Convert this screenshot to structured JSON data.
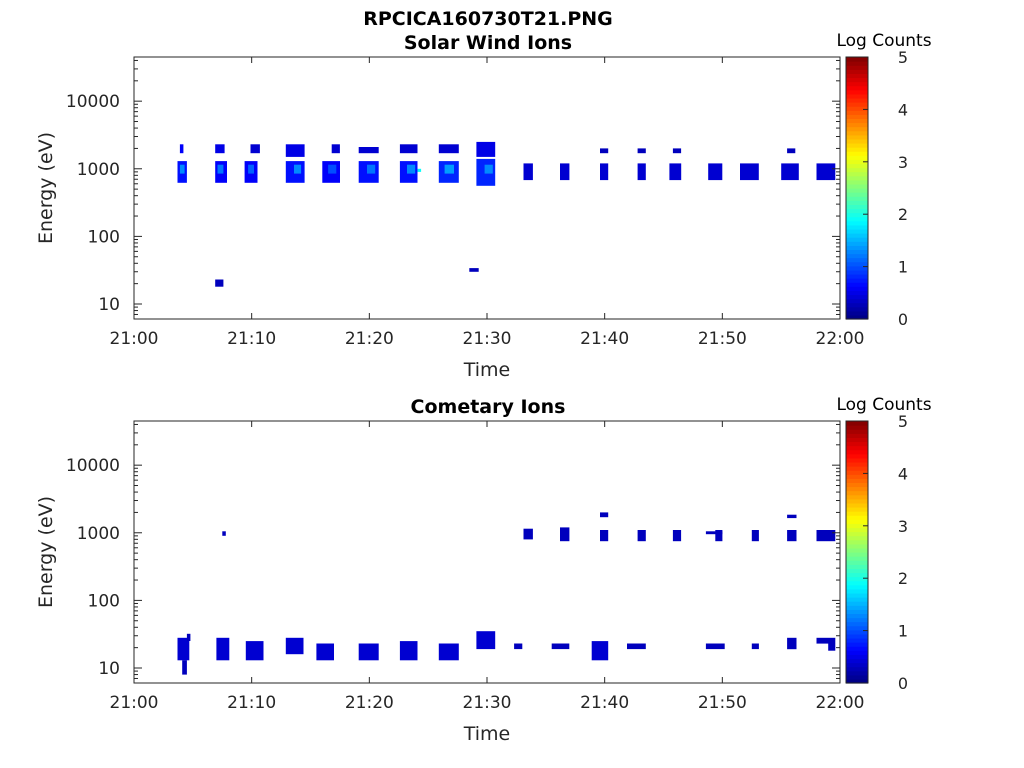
{
  "figure_title": "RPCICA160730T21.PNG",
  "colorbar": {
    "title": "Log Counts",
    "ticks": [
      "0",
      "1",
      "2",
      "3",
      "4",
      "5"
    ],
    "range": [
      0,
      5
    ],
    "colormap": "jet"
  },
  "chart_data": [
    {
      "type": "heatmap",
      "title": "Solar Wind Ions",
      "xlabel": "Time",
      "ylabel": "Energy (eV)",
      "x_ticks": [
        "21:00",
        "21:10",
        "21:20",
        "21:30",
        "21:40",
        "21:50",
        "22:00"
      ],
      "xlim_minutes": [
        0,
        60
      ],
      "y_scale": "log",
      "y_ticks": [
        "10",
        "100",
        "1000",
        "10000"
      ],
      "y_tick_values": [
        10,
        100,
        1000,
        10000
      ],
      "ylim": [
        6,
        45000
      ],
      "cells": [
        [
          3.7,
          4.5,
          620,
          1300,
          0.7
        ],
        [
          3.9,
          4.3,
          850,
          1150,
          1.3
        ],
        [
          3.9,
          4.2,
          1700,
          2300,
          0.6
        ],
        [
          6.9,
          7.9,
          620,
          1300,
          0.6
        ],
        [
          7.1,
          7.6,
          850,
          1150,
          1.2
        ],
        [
          6.9,
          7.7,
          1700,
          2300,
          0.5
        ],
        [
          6.9,
          7.6,
          18,
          23,
          0.3
        ],
        [
          9.4,
          10.5,
          620,
          1300,
          0.6
        ],
        [
          9.7,
          10.2,
          850,
          1150,
          1.1
        ],
        [
          9.9,
          10.7,
          1700,
          2300,
          0.4
        ],
        [
          12.9,
          14.5,
          620,
          1300,
          0.7
        ],
        [
          13.6,
          14.2,
          850,
          1150,
          1.3
        ],
        [
          12.9,
          14.5,
          1500,
          2300,
          0.5
        ],
        [
          16.0,
          17.5,
          620,
          1300,
          0.6
        ],
        [
          16.5,
          17.2,
          850,
          1150,
          1.0
        ],
        [
          16.8,
          17.5,
          1700,
          2300,
          0.4
        ],
        [
          19.1,
          20.8,
          620,
          1300,
          0.7
        ],
        [
          19.8,
          20.5,
          850,
          1150,
          1.2
        ],
        [
          19.1,
          20.8,
          1700,
          2100,
          0.4
        ],
        [
          22.6,
          24.1,
          620,
          1300,
          0.7
        ],
        [
          23.2,
          23.9,
          850,
          1150,
          1.3
        ],
        [
          24.1,
          24.4,
          900,
          1000,
          1.9
        ],
        [
          22.6,
          24.1,
          1700,
          2300,
          0.4
        ],
        [
          25.9,
          27.6,
          620,
          1300,
          0.8
        ],
        [
          26.4,
          27.2,
          850,
          1150,
          1.4
        ],
        [
          25.9,
          27.6,
          1700,
          2300,
          0.4
        ],
        [
          28.5,
          29.3,
          30,
          34,
          0.3
        ],
        [
          29.1,
          30.7,
          560,
          1400,
          0.8
        ],
        [
          29.8,
          30.5,
          850,
          1150,
          1.3
        ],
        [
          29.1,
          30.7,
          1500,
          2500,
          0.5
        ],
        [
          33.1,
          33.9,
          680,
          1200,
          0.4
        ],
        [
          36.2,
          37.0,
          680,
          1200,
          0.4
        ],
        [
          39.6,
          40.3,
          680,
          1200,
          0.4
        ],
        [
          39.6,
          40.3,
          1700,
          2000,
          0.3
        ],
        [
          42.8,
          43.5,
          680,
          1200,
          0.4
        ],
        [
          42.8,
          43.5,
          1700,
          2000,
          0.3
        ],
        [
          45.5,
          46.5,
          680,
          1200,
          0.4
        ],
        [
          45.8,
          46.5,
          1700,
          2000,
          0.3
        ],
        [
          48.8,
          50.0,
          680,
          1200,
          0.4
        ],
        [
          51.5,
          53.1,
          680,
          1200,
          0.4
        ],
        [
          55.0,
          56.5,
          680,
          1200,
          0.4
        ],
        [
          55.5,
          56.2,
          1700,
          2000,
          0.3
        ],
        [
          58.0,
          59.6,
          680,
          1200,
          0.4
        ]
      ]
    },
    {
      "type": "heatmap",
      "title": "Cometary Ions",
      "xlabel": "Time",
      "ylabel": "Energy (eV)",
      "x_ticks": [
        "21:00",
        "21:10",
        "21:20",
        "21:30",
        "21:40",
        "21:50",
        "22:00"
      ],
      "xlim_minutes": [
        0,
        60
      ],
      "y_scale": "log",
      "y_ticks": [
        "10",
        "100",
        "1000",
        "10000"
      ],
      "y_tick_values": [
        10,
        100,
        1000,
        10000
      ],
      "ylim": [
        6,
        45000
      ],
      "cells": [
        [
          3.7,
          4.7,
          13,
          28,
          0.4
        ],
        [
          4.1,
          4.5,
          8,
          13,
          0.3
        ],
        [
          4.5,
          4.8,
          25,
          32,
          0.3
        ],
        [
          7.0,
          8.1,
          13,
          28,
          0.4
        ],
        [
          7.5,
          7.8,
          900,
          1050,
          0.3
        ],
        [
          9.5,
          11.0,
          13,
          25,
          0.4
        ],
        [
          12.9,
          14.4,
          16,
          28,
          0.4
        ],
        [
          15.5,
          17.0,
          13,
          23,
          0.4
        ],
        [
          19.1,
          20.8,
          13,
          23,
          0.4
        ],
        [
          22.6,
          24.1,
          13,
          25,
          0.4
        ],
        [
          25.9,
          27.6,
          13,
          23,
          0.4
        ],
        [
          29.1,
          30.7,
          19,
          35,
          0.4
        ],
        [
          32.3,
          33.0,
          19,
          23,
          0.3
        ],
        [
          33.1,
          33.9,
          800,
          1150,
          0.3
        ],
        [
          35.5,
          37.0,
          19,
          23,
          0.3
        ],
        [
          36.2,
          37.0,
          750,
          1200,
          0.3
        ],
        [
          38.9,
          40.3,
          13,
          25,
          0.4
        ],
        [
          39.6,
          40.3,
          750,
          1100,
          0.3
        ],
        [
          39.6,
          40.3,
          1700,
          2000,
          0.3
        ],
        [
          41.9,
          43.5,
          19,
          23,
          0.3
        ],
        [
          42.8,
          43.5,
          750,
          1100,
          0.3
        ],
        [
          45.8,
          46.5,
          750,
          1100,
          0.3
        ],
        [
          48.6,
          50.2,
          19,
          23,
          0.3
        ],
        [
          48.6,
          50.0,
          950,
          1050,
          0.3
        ],
        [
          49.4,
          50.0,
          750,
          1100,
          0.3
        ],
        [
          52.5,
          53.1,
          19,
          23,
          0.3
        ],
        [
          52.5,
          53.1,
          750,
          1100,
          0.3
        ],
        [
          55.5,
          56.3,
          19,
          28,
          0.3
        ],
        [
          55.5,
          56.3,
          750,
          1100,
          0.3
        ],
        [
          55.5,
          56.3,
          1650,
          1850,
          0.3
        ],
        [
          58.0,
          59.6,
          750,
          1100,
          0.3
        ],
        [
          58.0,
          59.6,
          23,
          28,
          0.3
        ],
        [
          59.0,
          59.6,
          18,
          23,
          0.3
        ]
      ]
    }
  ]
}
